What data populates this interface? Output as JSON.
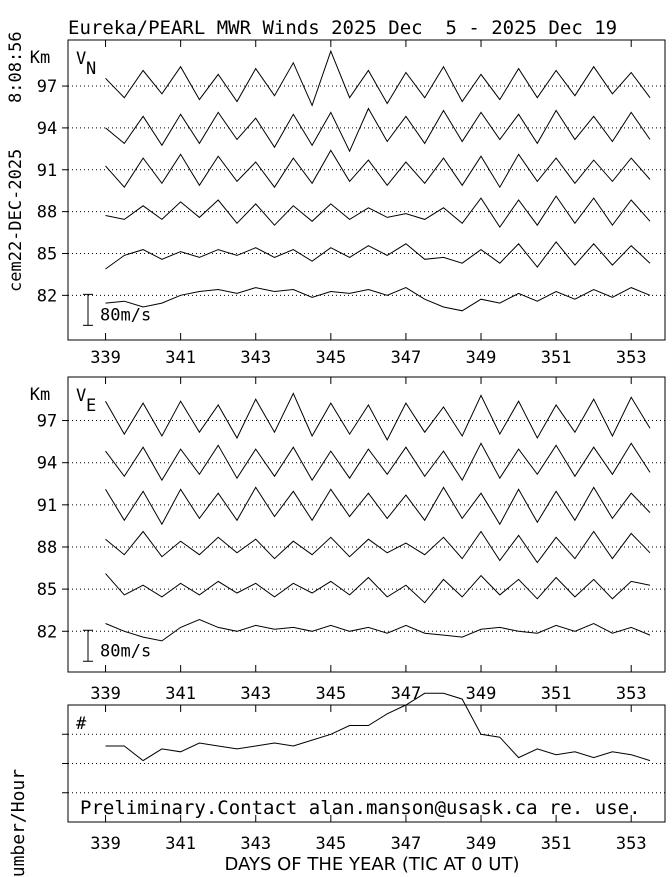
{
  "header": {
    "title": "Eureka/PEARL MWR Winds 2025 Dec  5 - 2025 Dec 19",
    "time": "8:08:56",
    "stamp": "cem22-DEC-2025"
  },
  "footer": {
    "x_label": "DAYS OF THE YEAR (TIC AT 0 UT)",
    "contact": "Preliminary.Contact alan.manson@usask.ca re. use."
  },
  "chart_data": [
    {
      "type": "line",
      "y_unit": "Km",
      "panel_label": "V",
      "panel_label_sub": "N",
      "scale_bar": {
        "value": 80,
        "label": "80m/s"
      },
      "xlim": [
        338,
        353.9
      ],
      "xticks": [
        339,
        341,
        343,
        345,
        347,
        349,
        351,
        353
      ],
      "ylim": [
        78.8,
        100.3
      ],
      "yticks": [
        97,
        94,
        91,
        88,
        85,
        82
      ],
      "grid": true,
      "x": [
        339,
        339.5,
        340,
        340.5,
        341,
        341.5,
        342,
        342.5,
        343,
        343.5,
        344,
        344.5,
        345,
        345.5,
        346,
        346.5,
        347,
        347.5,
        348,
        348.5,
        349,
        349.5,
        350,
        350.5,
        351,
        351.5,
        352,
        352.5,
        353,
        353.5
      ],
      "series": [
        {
          "level": 97,
          "values": [
            20,
            -30,
            40,
            -20,
            50,
            -35,
            30,
            -40,
            45,
            -25,
            60,
            -50,
            90,
            -30,
            40,
            -45,
            35,
            -30,
            50,
            -40,
            30,
            -35,
            45,
            -30,
            40,
            -25,
            50,
            -20,
            35,
            -30
          ]
        },
        {
          "level": 94,
          "values": [
            0,
            -40,
            30,
            -45,
            35,
            -40,
            40,
            -30,
            25,
            -50,
            35,
            -45,
            40,
            -60,
            50,
            -35,
            30,
            -40,
            45,
            -35,
            40,
            -30,
            35,
            -40,
            45,
            -30,
            30,
            -35,
            40,
            -30
          ]
        },
        {
          "level": 91,
          "values": [
            10,
            -45,
            30,
            -35,
            40,
            -40,
            35,
            -30,
            20,
            -45,
            30,
            -35,
            50,
            -30,
            25,
            -40,
            20,
            -35,
            30,
            -40,
            35,
            -45,
            40,
            -30,
            30,
            -35,
            25,
            -30,
            30,
            -25
          ]
        },
        {
          "level": 88,
          "values": [
            -10,
            -20,
            15,
            -20,
            25,
            -15,
            30,
            -30,
            20,
            -35,
            15,
            -25,
            20,
            -20,
            10,
            -15,
            -5,
            -20,
            10,
            -30,
            35,
            -40,
            30,
            -35,
            40,
            -30,
            35,
            -35,
            30,
            -25
          ]
        },
        {
          "level": 85,
          "values": [
            -40,
            -5,
            10,
            -15,
            5,
            -10,
            10,
            -5,
            15,
            -10,
            10,
            -20,
            15,
            -10,
            20,
            -5,
            25,
            -15,
            -10,
            -25,
            10,
            -25,
            25,
            -35,
            30,
            -30,
            25,
            -30,
            20,
            -25
          ]
        },
        {
          "level": 82,
          "values": [
            -20,
            -15,
            -30,
            -20,
            0,
            10,
            15,
            5,
            20,
            10,
            15,
            -5,
            10,
            5,
            15,
            0,
            20,
            -10,
            -30,
            -40,
            -10,
            -20,
            5,
            -15,
            10,
            -10,
            15,
            -5,
            20,
            0
          ]
        }
      ]
    },
    {
      "type": "line",
      "y_unit": "Km",
      "panel_label": "V",
      "panel_label_sub": "E",
      "scale_bar": {
        "value": 80,
        "label": "80m/s"
      },
      "xlim": [
        338,
        353.9
      ],
      "xticks": [
        339,
        341,
        343,
        345,
        347,
        349,
        351,
        353
      ],
      "ylim": [
        79.1,
        100.1
      ],
      "yticks": [
        97,
        94,
        91,
        88,
        85,
        82
      ],
      "grid": true,
      "x": [
        339,
        339.5,
        340,
        340.5,
        341,
        341.5,
        342,
        342.5,
        343,
        343.5,
        344,
        344.5,
        345,
        345.5,
        346,
        346.5,
        347,
        347.5,
        348,
        348.5,
        349,
        349.5,
        350,
        350.5,
        351,
        351.5,
        352,
        352.5,
        353,
        353.5
      ],
      "series": [
        {
          "level": 97,
          "values": [
            50,
            -35,
            45,
            -40,
            50,
            -30,
            40,
            -45,
            55,
            -30,
            70,
            -40,
            45,
            -35,
            40,
            -50,
            45,
            -30,
            35,
            -40,
            65,
            -35,
            50,
            -45,
            40,
            -30,
            55,
            -40,
            60,
            -20
          ]
        },
        {
          "level": 94,
          "values": [
            30,
            -35,
            40,
            -45,
            35,
            -30,
            45,
            -40,
            35,
            -35,
            40,
            -45,
            30,
            -40,
            35,
            -30,
            40,
            -35,
            30,
            -45,
            50,
            -40,
            35,
            -30,
            45,
            -35,
            40,
            -30,
            50,
            -25
          ]
        },
        {
          "level": 91,
          "values": [
            40,
            -40,
            35,
            -50,
            40,
            -35,
            30,
            -40,
            45,
            -30,
            35,
            -40,
            40,
            -30,
            30,
            -35,
            25,
            -40,
            45,
            -35,
            30,
            -50,
            40,
            -45,
            35,
            -40,
            45,
            -35,
            30,
            -20
          ]
        },
        {
          "level": 88,
          "values": [
            20,
            -20,
            40,
            -25,
            15,
            -20,
            25,
            -15,
            20,
            -30,
            15,
            -20,
            25,
            -25,
            20,
            -15,
            10,
            -20,
            25,
            -30,
            40,
            -35,
            30,
            -40,
            25,
            -30,
            40,
            -30,
            35,
            -15
          ]
        },
        {
          "level": 85,
          "values": [
            40,
            -15,
            10,
            -20,
            15,
            -15,
            20,
            -10,
            15,
            -20,
            15,
            -10,
            20,
            -15,
            30,
            -20,
            10,
            -35,
            25,
            -20,
            35,
            -15,
            25,
            -25,
            30,
            -20,
            25,
            -25,
            20,
            10
          ]
        },
        {
          "level": 82,
          "values": [
            20,
            0,
            -15,
            -25,
            10,
            30,
            10,
            0,
            15,
            5,
            10,
            0,
            15,
            0,
            10,
            -5,
            15,
            -5,
            -10,
            -15,
            5,
            10,
            0,
            -5,
            15,
            0,
            20,
            -5,
            10,
            -10
          ]
        }
      ]
    },
    {
      "type": "line",
      "y_label": "Number/Hour",
      "panel_label": "#",
      "xlim": [
        338,
        353.9
      ],
      "xticks": [
        339,
        341,
        343,
        345,
        347,
        349,
        351,
        353
      ],
      "ylim": [
        0,
        4
      ],
      "yticks": [
        1,
        2,
        3
      ],
      "grid": true,
      "x": [
        339,
        339.5,
        340,
        340.5,
        341,
        341.5,
        342,
        342.5,
        343,
        343.5,
        344,
        344.5,
        345,
        345.5,
        346,
        346.5,
        347,
        347.5,
        348,
        348.5,
        349,
        349.5,
        350,
        350.5,
        351,
        351.5,
        352,
        352.5,
        353,
        353.5
      ],
      "values": [
        2.6,
        2.6,
        2.1,
        2.5,
        2.4,
        2.7,
        2.6,
        2.5,
        2.6,
        2.7,
        2.6,
        2.8,
        3.0,
        3.3,
        3.3,
        3.7,
        4.0,
        4.4,
        4.4,
        4.2,
        3.0,
        2.9,
        2.2,
        2.5,
        2.3,
        2.4,
        2.2,
        2.4,
        2.3,
        2.1
      ]
    }
  ]
}
